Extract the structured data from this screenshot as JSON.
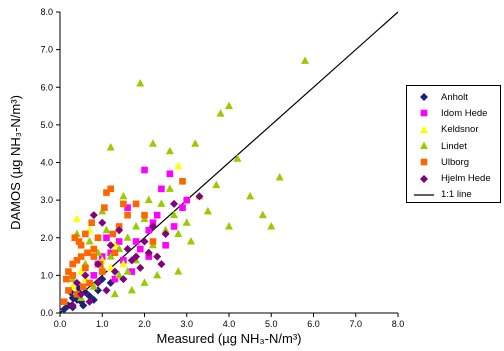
{
  "chart_data": {
    "type": "scatter",
    "xlabel": "Measured (µg NH₃-N/m³)",
    "ylabel": "DAMOS (µg NH₃-N/m³)",
    "xlim": [
      0,
      8
    ],
    "ylim": [
      0,
      8
    ],
    "x_ticks": [
      "0.0",
      "1.0",
      "2.0",
      "3.0",
      "4.0",
      "5.0",
      "6.0",
      "7.0",
      "8.0"
    ],
    "y_ticks": [
      "0.0",
      "1.0",
      "2.0",
      "3.0",
      "4.0",
      "5.0",
      "6.0",
      "7.0",
      "8.0"
    ],
    "grid": false,
    "legend_position": "right",
    "series": [
      {
        "name": "Anholt",
        "marker": "diamond",
        "color": "#1f1f7a",
        "points": [
          [
            0.1,
            0.1
          ],
          [
            0.2,
            0.2
          ],
          [
            0.3,
            0.15
          ],
          [
            0.4,
            0.35
          ],
          [
            0.5,
            0.3
          ],
          [
            0.6,
            0.55
          ],
          [
            0.7,
            0.45
          ],
          [
            0.9,
            0.6
          ],
          [
            1.0,
            0.9
          ],
          [
            0.3,
            0.4
          ],
          [
            0.55,
            0.2
          ],
          [
            0.8,
            0.35
          ],
          [
            0.45,
            0.65
          ],
          [
            1.2,
            0.8
          ],
          [
            0.25,
            0.55
          ]
        ]
      },
      {
        "name": "Idom Hede",
        "marker": "square",
        "color": "#ff00ff",
        "points": [
          [
            1.3,
            0.9
          ],
          [
            1.5,
            1.4
          ],
          [
            1.8,
            1.9
          ],
          [
            2.1,
            1.5
          ],
          [
            2.2,
            2.4
          ],
          [
            2.4,
            3.3
          ],
          [
            2.0,
            3.8
          ],
          [
            2.6,
            3.7
          ],
          [
            2.9,
            2.8
          ],
          [
            1.2,
            1.6
          ],
          [
            0.9,
            1.3
          ],
          [
            1.7,
            1.1
          ],
          [
            2.3,
            2.6
          ],
          [
            1.9,
            1.7
          ],
          [
            2.7,
            2.3
          ],
          [
            1.1,
            2.0
          ],
          [
            1.6,
            2.8
          ],
          [
            3.0,
            3.0
          ],
          [
            2.5,
            1.8
          ],
          [
            1.4,
            1.9
          ],
          [
            2.1,
            2.2
          ],
          [
            0.8,
            1.0
          ],
          [
            1.0,
            1.5
          ]
        ]
      },
      {
        "name": "Keldsnor",
        "marker": "triangle",
        "color": "#ffff00",
        "points": [
          [
            0.3,
            0.7
          ],
          [
            0.5,
            1.1
          ],
          [
            0.8,
            1.6
          ],
          [
            1.0,
            1.4
          ],
          [
            0.4,
            2.5
          ],
          [
            1.3,
            1.8
          ],
          [
            0.7,
            2.2
          ],
          [
            0.6,
            0.9
          ],
          [
            1.2,
            1.2
          ],
          [
            0.9,
            2.0
          ],
          [
            2.8,
            3.9
          ],
          [
            1.5,
            1.3
          ]
        ]
      },
      {
        "name": "Lindet",
        "marker": "triangle",
        "color": "#99cc00",
        "points": [
          [
            0.5,
            0.4
          ],
          [
            0.8,
            0.7
          ],
          [
            1.0,
            1.2
          ],
          [
            1.2,
            1.5
          ],
          [
            1.4,
            1.0
          ],
          [
            1.6,
            2.0
          ],
          [
            1.8,
            1.4
          ],
          [
            2.0,
            2.5
          ],
          [
            2.2,
            1.8
          ],
          [
            2.4,
            2.9
          ],
          [
            2.6,
            3.3
          ],
          [
            2.8,
            2.1
          ],
          [
            3.0,
            2.4
          ],
          [
            3.5,
            2.7
          ],
          [
            3.7,
            3.4
          ],
          [
            4.0,
            2.3
          ],
          [
            4.2,
            4.1
          ],
          [
            4.5,
            3.1
          ],
          [
            4.8,
            2.6
          ],
          [
            5.0,
            2.3
          ],
          [
            5.2,
            3.6
          ],
          [
            5.8,
            6.7
          ],
          [
            1.9,
            6.1
          ],
          [
            2.2,
            4.5
          ],
          [
            3.2,
            4.5
          ],
          [
            4.0,
            5.5
          ],
          [
            3.8,
            5.3
          ],
          [
            2.6,
            4.3
          ],
          [
            2.8,
            1.1
          ],
          [
            1.2,
            4.4
          ],
          [
            1.5,
            3.1
          ],
          [
            1.0,
            2.7
          ],
          [
            0.7,
            1.9
          ],
          [
            1.3,
            0.5
          ],
          [
            1.7,
            0.6
          ],
          [
            2.3,
            1.0
          ],
          [
            3.1,
            1.9
          ],
          [
            2.5,
            2.2
          ],
          [
            1.1,
            2.2
          ],
          [
            0.9,
            1.6
          ],
          [
            0.6,
            1.3
          ],
          [
            1.8,
            2.3
          ],
          [
            2.1,
            3.0
          ],
          [
            0.4,
            2.1
          ],
          [
            1.4,
            1.7
          ],
          [
            2.7,
            2.6
          ],
          [
            3.3,
            3.1
          ],
          [
            1.6,
            1.1
          ],
          [
            2.0,
            0.8
          ],
          [
            0.3,
            0.9
          ]
        ]
      },
      {
        "name": "Ulborg",
        "marker": "square",
        "color": "#ff6600",
        "points": [
          [
            0.1,
            0.3
          ],
          [
            0.2,
            0.6
          ],
          [
            0.3,
            1.0
          ],
          [
            0.4,
            1.4
          ],
          [
            0.5,
            1.8
          ],
          [
            0.6,
            1.2
          ],
          [
            0.7,
            0.8
          ],
          [
            0.8,
            1.5
          ],
          [
            0.9,
            2.0
          ],
          [
            1.0,
            1.1
          ],
          [
            1.1,
            3.2
          ],
          [
            1.2,
            3.3
          ],
          [
            1.3,
            1.6
          ],
          [
            1.4,
            2.3
          ],
          [
            1.6,
            2.6
          ],
          [
            1.8,
            2.9
          ],
          [
            2.0,
            2.6
          ],
          [
            2.2,
            1.9
          ],
          [
            2.9,
            3.5
          ],
          [
            0.2,
            1.1
          ],
          [
            0.4,
            0.5
          ],
          [
            0.6,
            2.1
          ],
          [
            0.8,
            1.7
          ],
          [
            0.5,
            1.5
          ],
          [
            0.35,
            2.0
          ],
          [
            0.15,
            0.9
          ],
          [
            0.75,
            2.4
          ],
          [
            0.95,
            1.3
          ],
          [
            1.05,
            2.8
          ],
          [
            1.25,
            2.1
          ],
          [
            0.55,
            0.7
          ],
          [
            0.45,
            1.9
          ],
          [
            0.65,
            1.6
          ],
          [
            1.5,
            2.9
          ],
          [
            0.3,
            1.3
          ]
        ]
      },
      {
        "name": "Hjelm Hede",
        "marker": "diamond",
        "color": "#800080",
        "points": [
          [
            0.3,
            0.2
          ],
          [
            0.5,
            0.5
          ],
          [
            0.7,
            0.3
          ],
          [
            0.9,
            0.8
          ],
          [
            1.1,
            0.6
          ],
          [
            1.3,
            1.1
          ],
          [
            1.5,
            0.9
          ],
          [
            1.7,
            1.4
          ],
          [
            1.9,
            1.2
          ],
          [
            2.1,
            1.6
          ],
          [
            2.3,
            1.5
          ],
          [
            2.5,
            2.1
          ],
          [
            2.7,
            2.9
          ],
          [
            3.3,
            3.1
          ],
          [
            0.8,
            2.6
          ],
          [
            1.0,
            2.4
          ],
          [
            1.4,
            2.2
          ],
          [
            1.6,
            1.7
          ],
          [
            2.0,
            1.9
          ],
          [
            2.4,
            1.3
          ],
          [
            1.2,
            1.8
          ],
          [
            0.6,
            1.0
          ],
          [
            1.8,
            1.5
          ],
          [
            2.2,
            2.3
          ],
          [
            0.4,
            0.8
          ],
          [
            0.9,
            1.3
          ]
        ]
      }
    ],
    "reference_line": {
      "name": "1:1 line",
      "from": [
        0,
        0
      ],
      "to": [
        8,
        8
      ],
      "color": "#000000"
    }
  }
}
